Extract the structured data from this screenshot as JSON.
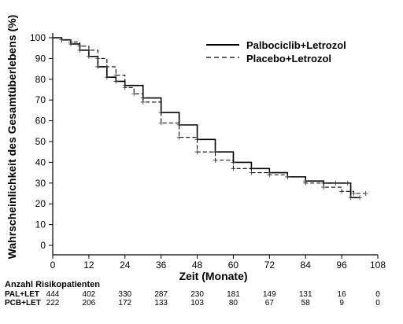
{
  "chart_data": {
    "type": "line",
    "ylabel": "Wahrscheinlichkeit des Gesamtüberlebens (%)",
    "xlabel": "Zeit (Monate)",
    "xlim": [
      0,
      108
    ],
    "ylim": [
      0,
      100
    ],
    "xticks": [
      "0",
      "12",
      "24",
      "36",
      "48",
      "60",
      "72",
      "84",
      "96",
      "108"
    ],
    "yticks": [
      "0",
      "10",
      "20",
      "30",
      "40",
      "50",
      "60",
      "70",
      "80",
      "90",
      "100"
    ],
    "legend_position": "top-right",
    "series": [
      {
        "name": "Palbociclib+Letrozol",
        "style": "solid",
        "color": "#000000",
        "x": [
          0,
          3,
          6,
          9,
          12,
          15,
          18,
          21,
          24,
          30,
          36,
          42,
          48,
          54,
          60,
          66,
          72,
          78,
          84,
          90,
          94,
          98,
          99,
          102
        ],
        "y": [
          100,
          99,
          97,
          94,
          91,
          86,
          81,
          79,
          77,
          71,
          64,
          58,
          51,
          45,
          40,
          37,
          35,
          33,
          31,
          30,
          30,
          30,
          23,
          23
        ]
      },
      {
        "name": "Placebo+Letrozol",
        "style": "dashed",
        "color": "#000000",
        "x": [
          0,
          3,
          6,
          9,
          12,
          15,
          18,
          21,
          24,
          27,
          30,
          36,
          42,
          48,
          54,
          60,
          66,
          72,
          78,
          84,
          90,
          96,
          100,
          104
        ],
        "y": [
          100,
          99,
          98,
          96,
          94,
          90,
          86,
          82,
          76,
          73,
          69,
          59,
          52,
          45,
          41,
          37,
          35,
          34,
          33,
          30,
          28,
          26,
          25,
          25
        ]
      }
    ]
  },
  "risk_table": {
    "title": "Anzahl Risikopatienten",
    "rows": [
      {
        "label": "PAL+LET",
        "values": [
          "444",
          "402",
          "330",
          "287",
          "230",
          "181",
          "149",
          "131",
          "16",
          "0"
        ]
      },
      {
        "label": "PCB+LET",
        "values": [
          "222",
          "206",
          "172",
          "133",
          "103",
          "80",
          "67",
          "58",
          "9",
          "0"
        ]
      }
    ]
  }
}
